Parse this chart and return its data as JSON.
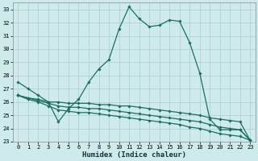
{
  "title": "",
  "xlabel": "Humidex (Indice chaleur)",
  "background_color": "#ceeaea",
  "grid_color": "#aacece",
  "line_color": "#1a7060",
  "x": [
    0,
    1,
    2,
    3,
    4,
    5,
    6,
    7,
    8,
    9,
    10,
    11,
    12,
    13,
    14,
    15,
    16,
    17,
    18,
    19,
    20,
    21,
    22,
    23
  ],
  "y_main": [
    27.5,
    27.0,
    26.5,
    26.0,
    24.5,
    25.5,
    26.2,
    27.5,
    28.5,
    29.2,
    31.5,
    33.2,
    32.3,
    31.7,
    31.8,
    32.2,
    32.1,
    30.5,
    28.2,
    24.7,
    23.9,
    23.9,
    23.9,
    23.1
  ],
  "y_line2": [
    26.5,
    26.3,
    26.2,
    26.0,
    26.0,
    25.9,
    25.9,
    25.9,
    25.8,
    25.8,
    25.7,
    25.7,
    25.6,
    25.5,
    25.4,
    25.3,
    25.2,
    25.1,
    25.0,
    24.8,
    24.7,
    24.6,
    24.5,
    23.1
  ],
  "y_line3": [
    26.5,
    26.3,
    26.1,
    25.9,
    25.7,
    25.6,
    25.6,
    25.5,
    25.5,
    25.4,
    25.3,
    25.2,
    25.1,
    25.0,
    24.9,
    24.8,
    24.7,
    24.6,
    24.5,
    24.3,
    24.1,
    24.0,
    23.9,
    23.1
  ],
  "y_line4": [
    26.5,
    26.2,
    26.0,
    25.7,
    25.4,
    25.3,
    25.2,
    25.2,
    25.1,
    25.0,
    24.9,
    24.8,
    24.7,
    24.6,
    24.5,
    24.4,
    24.3,
    24.1,
    24.0,
    23.8,
    23.6,
    23.5,
    23.4,
    23.1
  ],
  "ylim": [
    23,
    33.5
  ],
  "xlim": [
    -0.5,
    23.5
  ],
  "yticks": [
    23,
    24,
    25,
    26,
    27,
    28,
    29,
    30,
    31,
    32,
    33
  ],
  "xticks": [
    0,
    1,
    2,
    3,
    4,
    5,
    6,
    7,
    8,
    9,
    10,
    11,
    12,
    13,
    14,
    15,
    16,
    17,
    18,
    19,
    20,
    21,
    22,
    23
  ],
  "marker": "D",
  "marker_size": 1.8,
  "line_width": 0.9,
  "tick_fontsize": 5.0,
  "xlabel_fontsize": 6.5
}
